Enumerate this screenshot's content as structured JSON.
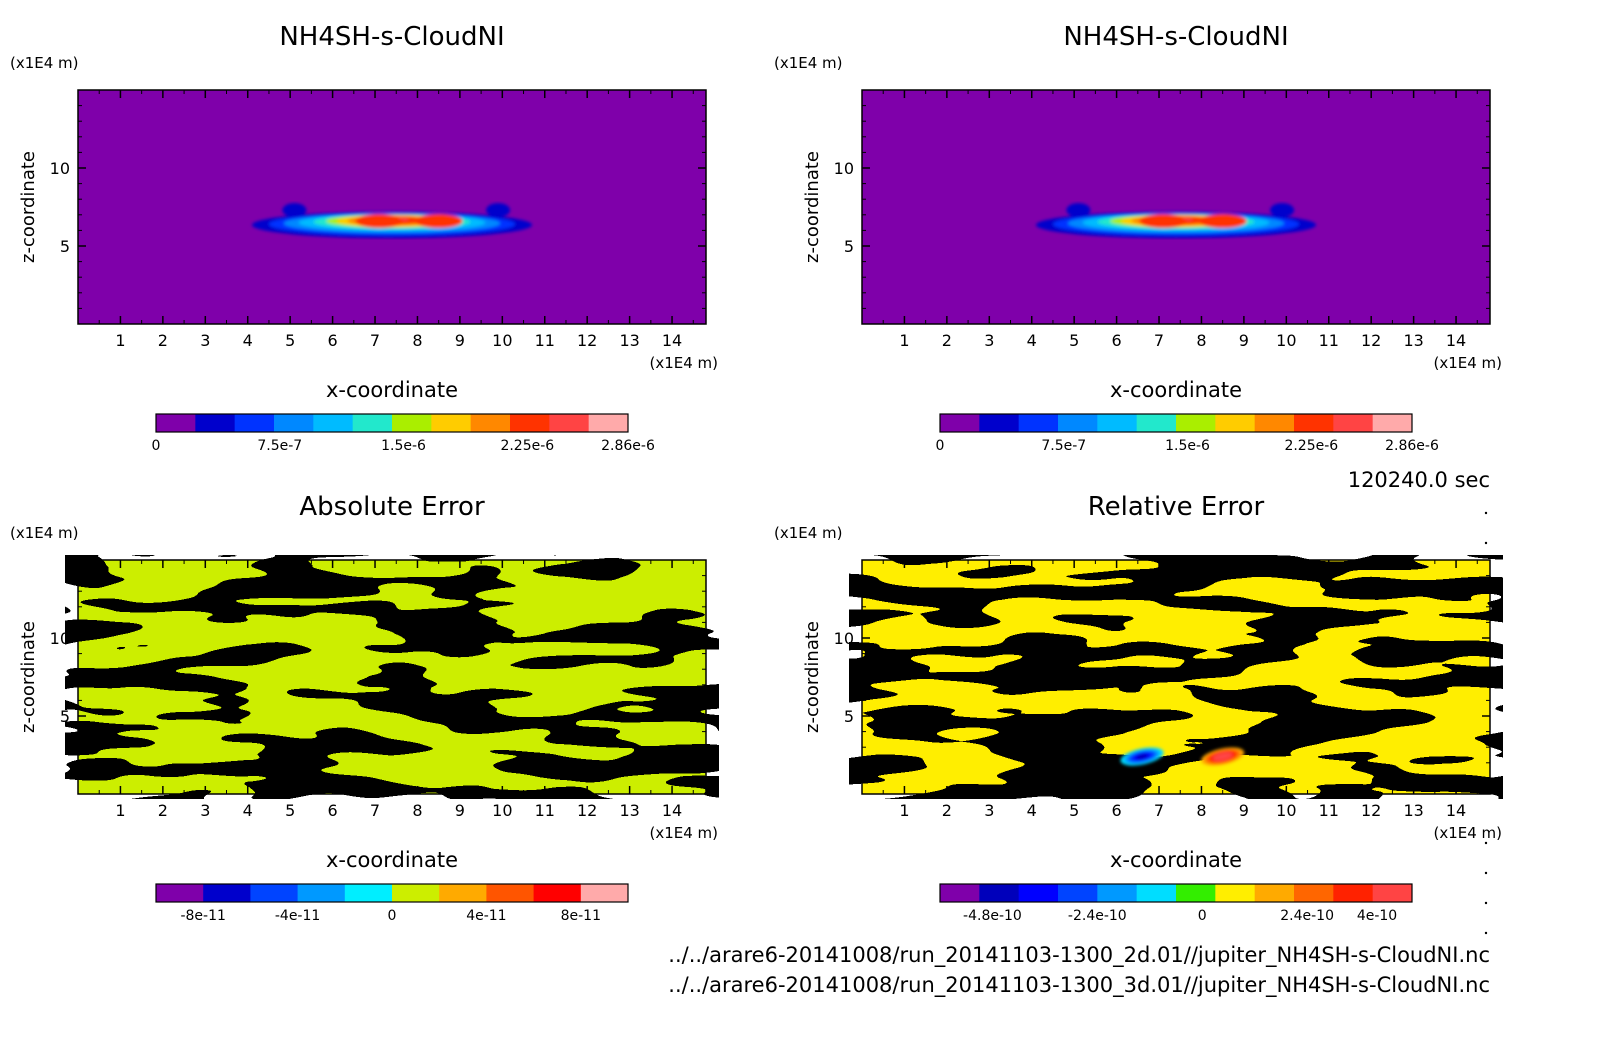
{
  "colors": {
    "seq": [
      "#7f00aa",
      "#0000cc",
      "#0033ff",
      "#0088ff",
      "#00bbff",
      "#22e8cc",
      "#aaee00",
      "#ffcc00",
      "#ff8800",
      "#ff3300",
      "#ff4444",
      "#ffaaaa"
    ],
    "abs": [
      "#7f00aa",
      "#0000cc",
      "#0044ff",
      "#0099ff",
      "#00eeff",
      "#ccee00",
      "#ffaa00",
      "#ff5500",
      "#ff0000",
      "#ffaaaa"
    ],
    "rel": [
      "#7f00aa",
      "#0000bb",
      "#0000ff",
      "#0044ff",
      "#0099ff",
      "#00ddff",
      "#33ee00",
      "#ffee00",
      "#ffaa00",
      "#ff6600",
      "#ff2200",
      "#ff4444"
    ]
  },
  "footer": {
    "time": "120240.0 sec",
    "file1": "../../arare6-20141008/run_20141103-1300_2d.01//jupiter_NH4SH-s-CloudNI.nc",
    "file2": "../../arare6-20141008/run_20141103-1300_3d.01//jupiter_NH4SH-s-CloudNI.nc"
  },
  "chart_data": [
    {
      "type": "heatmap",
      "title": "NH4SH-s-CloudNI",
      "xlabel": "x-coordinate",
      "ylabel": "z-coordinate",
      "x_unit": "(x1E4 m)",
      "y_unit": "(x1E4 m)",
      "xlim": [
        0,
        14.8
      ],
      "ylim": [
        0,
        15
      ],
      "x_ticks": [
        1,
        2,
        3,
        4,
        5,
        6,
        7,
        8,
        9,
        10,
        11,
        12,
        13,
        14
      ],
      "y_ticks": [
        5,
        10
      ],
      "colorbar": {
        "labels": [
          "0",
          "7.5e-7",
          "1.5e-6",
          "2.25e-6",
          "2.86e-6"
        ],
        "values": [
          0,
          7.5e-07,
          1.5e-06,
          2.25e-06,
          2.86e-06
        ],
        "min": 0,
        "max": 2.86e-06,
        "levels": 12
      },
      "palette": "seq",
      "field": "cloud"
    },
    {
      "type": "heatmap",
      "title": "NH4SH-s-CloudNI",
      "xlabel": "x-coordinate",
      "ylabel": "z-coordinate",
      "x_unit": "(x1E4 m)",
      "y_unit": "(x1E4 m)",
      "xlim": [
        0,
        14.8
      ],
      "ylim": [
        0,
        15
      ],
      "x_ticks": [
        1,
        2,
        3,
        4,
        5,
        6,
        7,
        8,
        9,
        10,
        11,
        12,
        13,
        14
      ],
      "y_ticks": [
        5,
        10
      ],
      "colorbar": {
        "labels": [
          "0",
          "7.5e-7",
          "1.5e-6",
          "2.25e-6",
          "2.86e-6"
        ],
        "values": [
          0,
          7.5e-07,
          1.5e-06,
          2.25e-06,
          2.86e-06
        ],
        "min": 0,
        "max": 2.86e-06,
        "levels": 12
      },
      "palette": "seq",
      "field": "cloud"
    },
    {
      "type": "heatmap",
      "title": "Absolute Error",
      "xlabel": "x-coordinate",
      "ylabel": "z-coordinate",
      "x_unit": "(x1E4 m)",
      "y_unit": "(x1E4 m)",
      "xlim": [
        0,
        14.8
      ],
      "ylim": [
        0,
        15
      ],
      "x_ticks": [
        1,
        2,
        3,
        4,
        5,
        6,
        7,
        8,
        9,
        10,
        11,
        12,
        13,
        14
      ],
      "y_ticks": [
        5,
        10
      ],
      "colorbar": {
        "labels": [
          "-8e-11",
          "-4e-11",
          "0",
          "4e-11",
          "8e-11"
        ],
        "values": [
          -8e-11,
          -4e-11,
          0,
          4e-11,
          8e-11
        ],
        "min": -1e-10,
        "max": 1e-10,
        "levels": 10
      },
      "palette": "abs",
      "field": "abs"
    },
    {
      "type": "heatmap",
      "title": "Relative Error",
      "xlabel": "x-coordinate",
      "ylabel": "z-coordinate",
      "x_unit": "(x1E4 m)",
      "y_unit": "(x1E4 m)",
      "xlim": [
        0,
        14.8
      ],
      "ylim": [
        0,
        15
      ],
      "x_ticks": [
        1,
        2,
        3,
        4,
        5,
        6,
        7,
        8,
        9,
        10,
        11,
        12,
        13,
        14
      ],
      "y_ticks": [
        5,
        10
      ],
      "colorbar": {
        "labels": [
          "-4.8e-10",
          "-2.4e-10",
          "0",
          "2.4e-10",
          "4e-10"
        ],
        "values": [
          -4.8e-10,
          -2.4e-10,
          0,
          2.4e-10,
          4e-10
        ],
        "min": -6e-10,
        "max": 4.8e-10,
        "levels": 12
      },
      "palette": "rel",
      "field": "rel"
    }
  ]
}
